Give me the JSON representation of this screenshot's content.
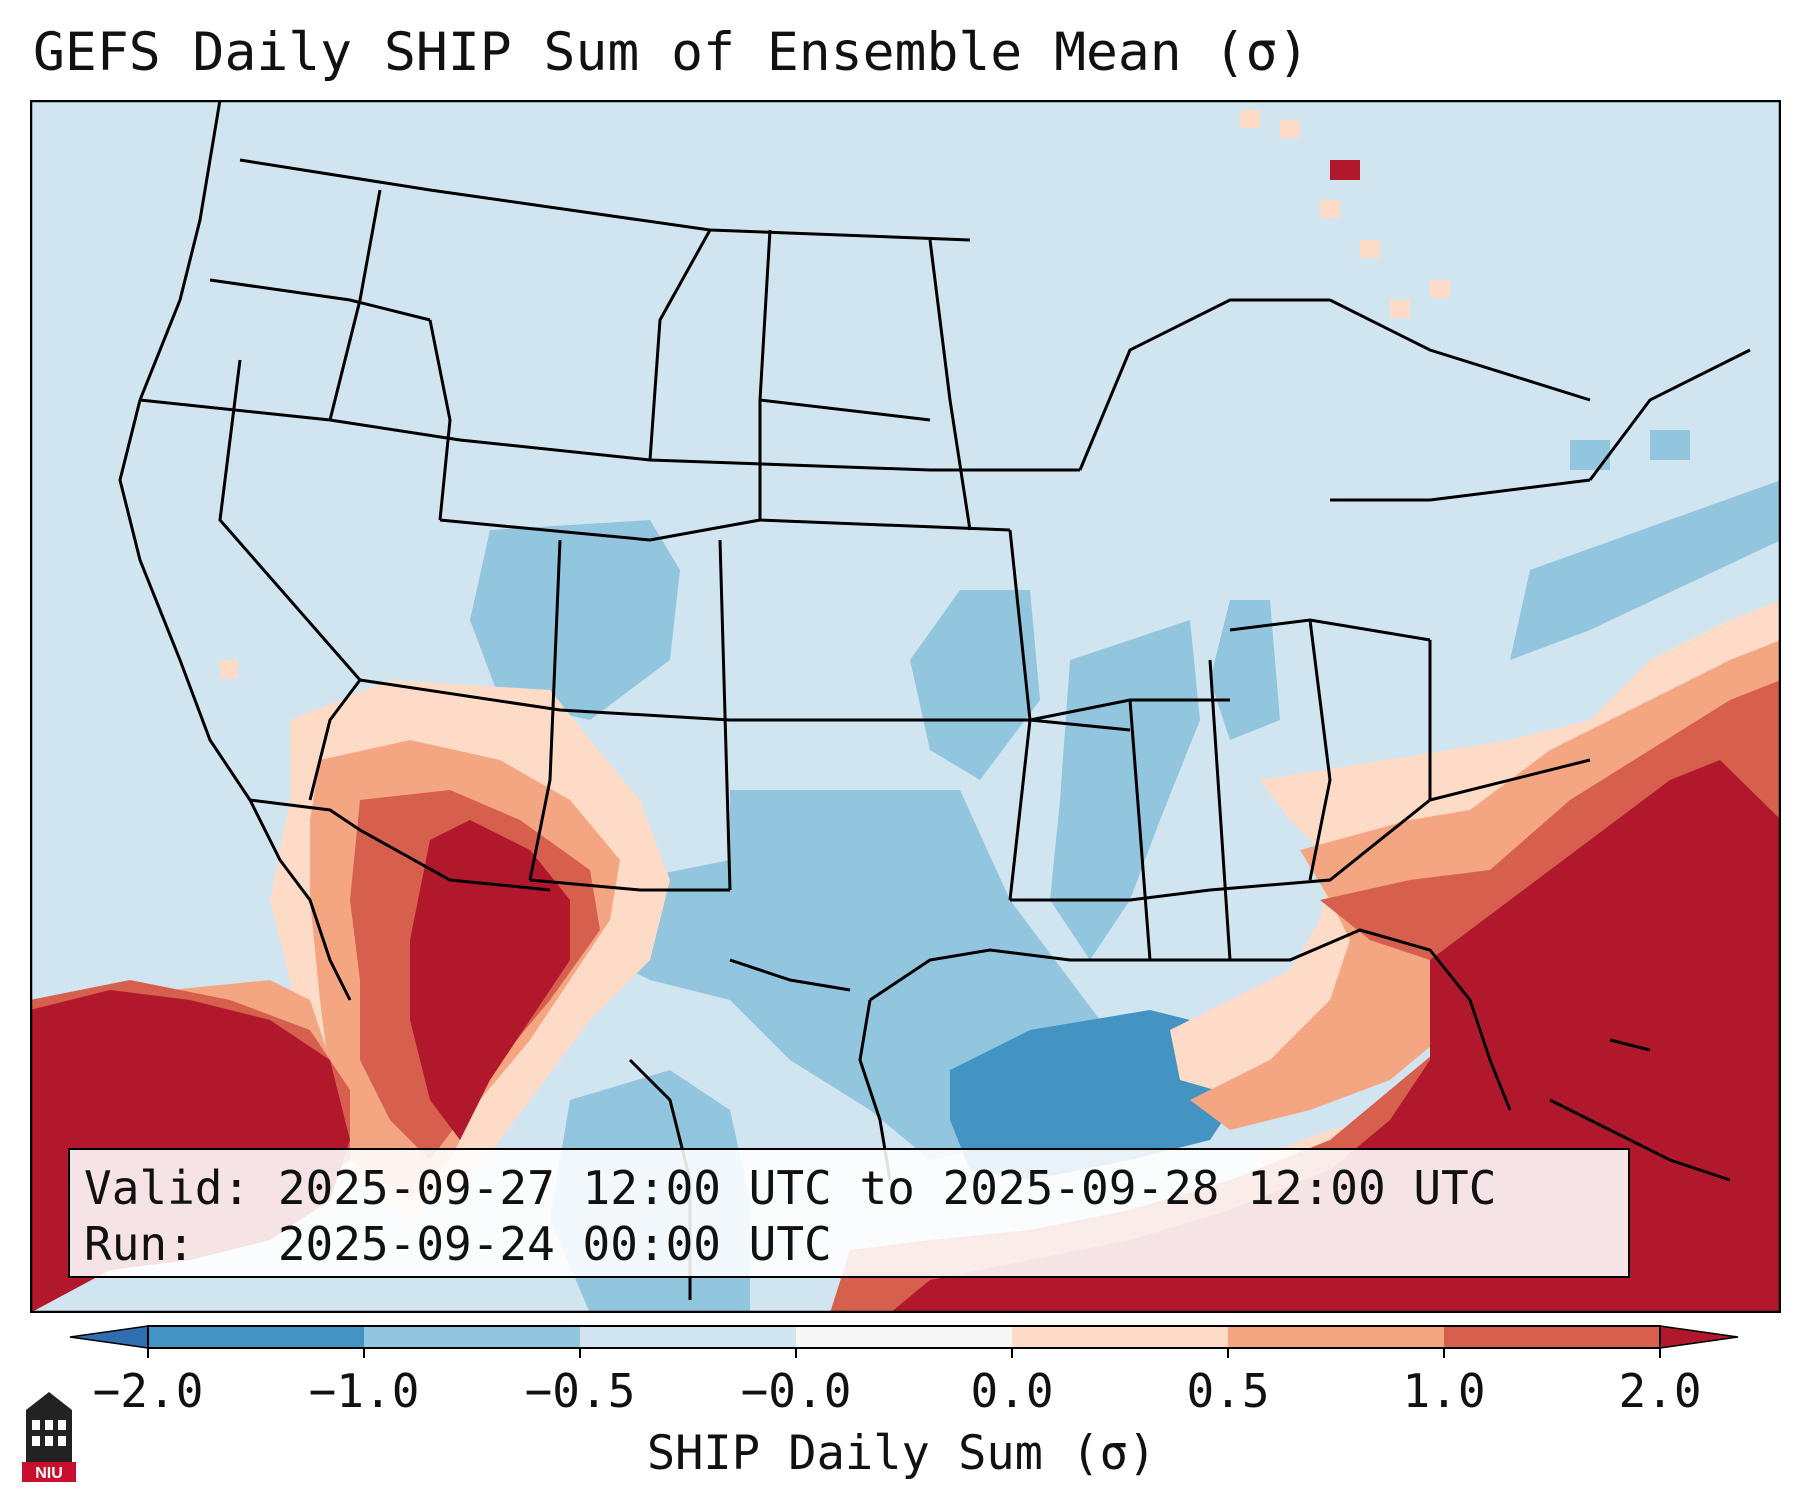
{
  "title": "GEFS Daily SHIP Sum of Ensemble Mean (σ)",
  "info": {
    "valid_line": "Valid: 2025-09-27 12:00 UTC to 2025-09-28 12:00 UTC",
    "run_line": "Run:   2025-09-24 00:00 UTC"
  },
  "colorbar": {
    "label": "SHIP Daily Sum (σ)",
    "ticks": [
      "−2.0",
      "−1.0",
      "−0.5",
      "−0.0",
      "0.0",
      "0.5",
      "1.0",
      "2.0"
    ],
    "bins": [
      {
        "range": "<-2.0",
        "color": "#2f6fb0"
      },
      {
        "range": "-2.0 to -1.0",
        "color": "#4393c3"
      },
      {
        "range": "-1.0 to -0.5",
        "color": "#92c5de"
      },
      {
        "range": "-0.5 to -0.0",
        "color": "#d1e5f0"
      },
      {
        "range": "-0.0 to 0.0",
        "color": "#f7f7f7"
      },
      {
        "range": "0.0 to 0.5",
        "color": "#fddbc7"
      },
      {
        "range": "0.5 to 1.0",
        "color": "#f4a582"
      },
      {
        "range": "1.0 to 2.0",
        "color": "#d6604d"
      },
      {
        "range": ">2.0",
        "color": "#b2182b"
      }
    ]
  },
  "logo": {
    "text": "NIU",
    "icon": "niu-tower-logo-icon"
  }
}
